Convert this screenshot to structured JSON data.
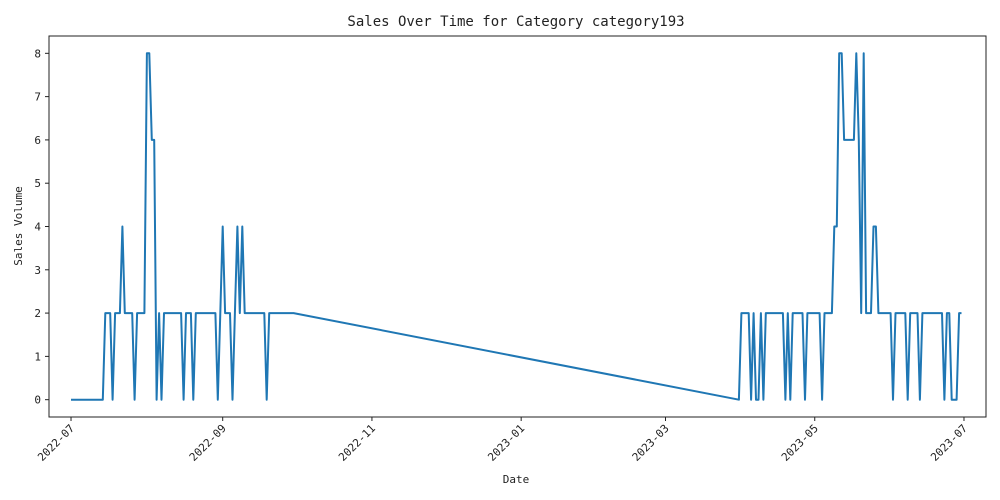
{
  "chart_data": {
    "type": "line",
    "title": "Sales Over Time for Category category193",
    "xlabel": "Date",
    "ylabel": "Sales Volume",
    "x_ticks": [
      "2022-07",
      "2022-09",
      "2022-11",
      "2023-01",
      "2023-03",
      "2023-05",
      "2023-07"
    ],
    "y_ticks": [
      0,
      1,
      2,
      3,
      4,
      5,
      6,
      7,
      8
    ],
    "xlim": [
      "2022-06-22",
      "2023-07-10"
    ],
    "ylim": [
      -0.4,
      8.4
    ],
    "grid": false,
    "colors": {
      "series": "#1f77b4",
      "frame": "#222222"
    },
    "series": [
      {
        "points": [
          [
            "2022-07-01",
            0
          ],
          [
            "2022-07-02",
            0
          ],
          [
            "2022-07-03",
            0
          ],
          [
            "2022-07-04",
            0
          ],
          [
            "2022-07-05",
            0
          ],
          [
            "2022-07-06",
            0
          ],
          [
            "2022-07-07",
            0
          ],
          [
            "2022-07-08",
            0
          ],
          [
            "2022-07-09",
            0
          ],
          [
            "2022-07-10",
            0
          ],
          [
            "2022-07-11",
            0
          ],
          [
            "2022-07-12",
            0
          ],
          [
            "2022-07-13",
            0
          ],
          [
            "2022-07-14",
            0
          ],
          [
            "2022-07-15",
            2
          ],
          [
            "2022-07-16",
            2
          ],
          [
            "2022-07-17",
            2
          ],
          [
            "2022-07-18",
            0
          ],
          [
            "2022-07-19",
            2
          ],
          [
            "2022-07-20",
            2
          ],
          [
            "2022-07-21",
            2
          ],
          [
            "2022-07-22",
            4
          ],
          [
            "2022-07-23",
            2
          ],
          [
            "2022-07-24",
            2
          ],
          [
            "2022-07-25",
            2
          ],
          [
            "2022-07-26",
            2
          ],
          [
            "2022-07-27",
            0
          ],
          [
            "2022-07-28",
            2
          ],
          [
            "2022-07-29",
            2
          ],
          [
            "2022-07-30",
            2
          ],
          [
            "2022-07-31",
            2
          ],
          [
            "2022-08-01",
            8
          ],
          [
            "2022-08-02",
            8
          ],
          [
            "2022-08-03",
            6
          ],
          [
            "2022-08-04",
            6
          ],
          [
            "2022-08-05",
            0
          ],
          [
            "2022-08-06",
            2
          ],
          [
            "2022-08-07",
            0
          ],
          [
            "2022-08-08",
            2
          ],
          [
            "2022-08-09",
            2
          ],
          [
            "2022-08-10",
            2
          ],
          [
            "2022-08-11",
            2
          ],
          [
            "2022-08-12",
            2
          ],
          [
            "2022-08-13",
            2
          ],
          [
            "2022-08-14",
            2
          ],
          [
            "2022-08-15",
            2
          ],
          [
            "2022-08-16",
            0
          ],
          [
            "2022-08-17",
            2
          ],
          [
            "2022-08-18",
            2
          ],
          [
            "2022-08-19",
            2
          ],
          [
            "2022-08-20",
            0
          ],
          [
            "2022-08-21",
            2
          ],
          [
            "2022-08-22",
            2
          ],
          [
            "2022-08-23",
            2
          ],
          [
            "2022-08-24",
            2
          ],
          [
            "2022-08-25",
            2
          ],
          [
            "2022-08-26",
            2
          ],
          [
            "2022-08-27",
            2
          ],
          [
            "2022-08-28",
            2
          ],
          [
            "2022-08-29",
            2
          ],
          [
            "2022-08-30",
            0
          ],
          [
            "2022-08-31",
            2
          ],
          [
            "2022-09-01",
            4
          ],
          [
            "2022-09-02",
            2
          ],
          [
            "2022-09-03",
            2
          ],
          [
            "2022-09-04",
            2
          ],
          [
            "2022-09-05",
            0
          ],
          [
            "2022-09-06",
            2
          ],
          [
            "2022-09-07",
            4
          ],
          [
            "2022-09-08",
            2
          ],
          [
            "2022-09-09",
            4
          ],
          [
            "2022-09-10",
            2
          ],
          [
            "2022-09-11",
            2
          ],
          [
            "2022-09-12",
            2
          ],
          [
            "2022-09-13",
            2
          ],
          [
            "2022-09-14",
            2
          ],
          [
            "2022-09-15",
            2
          ],
          [
            "2022-09-16",
            2
          ],
          [
            "2022-09-17",
            2
          ],
          [
            "2022-09-18",
            2
          ],
          [
            "2022-09-19",
            0
          ],
          [
            "2022-09-20",
            2
          ],
          [
            "2022-09-21",
            2
          ],
          [
            "2022-09-30",
            2
          ],
          [
            "2023-03-31",
            0
          ],
          [
            "2023-04-01",
            2
          ],
          [
            "2023-04-02",
            2
          ],
          [
            "2023-04-03",
            2
          ],
          [
            "2023-04-04",
            2
          ],
          [
            "2023-04-05",
            0
          ],
          [
            "2023-04-06",
            2
          ],
          [
            "2023-04-07",
            0
          ],
          [
            "2023-04-08",
            0
          ],
          [
            "2023-04-09",
            2
          ],
          [
            "2023-04-10",
            0
          ],
          [
            "2023-04-11",
            2
          ],
          [
            "2023-04-12",
            2
          ],
          [
            "2023-04-13",
            2
          ],
          [
            "2023-04-14",
            2
          ],
          [
            "2023-04-15",
            2
          ],
          [
            "2023-04-16",
            2
          ],
          [
            "2023-04-17",
            2
          ],
          [
            "2023-04-18",
            2
          ],
          [
            "2023-04-19",
            0
          ],
          [
            "2023-04-20",
            2
          ],
          [
            "2023-04-21",
            0
          ],
          [
            "2023-04-22",
            2
          ],
          [
            "2023-04-23",
            2
          ],
          [
            "2023-04-24",
            2
          ],
          [
            "2023-04-25",
            2
          ],
          [
            "2023-04-26",
            2
          ],
          [
            "2023-04-27",
            0
          ],
          [
            "2023-04-28",
            2
          ],
          [
            "2023-04-29",
            2
          ],
          [
            "2023-04-30",
            2
          ],
          [
            "2023-05-01",
            2
          ],
          [
            "2023-05-02",
            2
          ],
          [
            "2023-05-03",
            2
          ],
          [
            "2023-05-04",
            0
          ],
          [
            "2023-05-05",
            2
          ],
          [
            "2023-05-06",
            2
          ],
          [
            "2023-05-07",
            2
          ],
          [
            "2023-05-08",
            2
          ],
          [
            "2023-05-09",
            4
          ],
          [
            "2023-05-10",
            4
          ],
          [
            "2023-05-11",
            8
          ],
          [
            "2023-05-12",
            8
          ],
          [
            "2023-05-13",
            6
          ],
          [
            "2023-05-14",
            6
          ],
          [
            "2023-05-15",
            6
          ],
          [
            "2023-05-16",
            6
          ],
          [
            "2023-05-17",
            6
          ],
          [
            "2023-05-18",
            8
          ],
          [
            "2023-05-19",
            6
          ],
          [
            "2023-05-20",
            2
          ],
          [
            "2023-05-21",
            8
          ],
          [
            "2023-05-22",
            2
          ],
          [
            "2023-05-23",
            2
          ],
          [
            "2023-05-24",
            2
          ],
          [
            "2023-05-25",
            4
          ],
          [
            "2023-05-26",
            4
          ],
          [
            "2023-05-27",
            2
          ],
          [
            "2023-05-28",
            2
          ],
          [
            "2023-05-29",
            2
          ],
          [
            "2023-05-30",
            2
          ],
          [
            "2023-05-31",
            2
          ],
          [
            "2023-06-01",
            2
          ],
          [
            "2023-06-02",
            0
          ],
          [
            "2023-06-03",
            2
          ],
          [
            "2023-06-04",
            2
          ],
          [
            "2023-06-05",
            2
          ],
          [
            "2023-06-06",
            2
          ],
          [
            "2023-06-07",
            2
          ],
          [
            "2023-06-08",
            0
          ],
          [
            "2023-06-09",
            2
          ],
          [
            "2023-06-10",
            2
          ],
          [
            "2023-06-11",
            2
          ],
          [
            "2023-06-12",
            2
          ],
          [
            "2023-06-13",
            0
          ],
          [
            "2023-06-14",
            2
          ],
          [
            "2023-06-15",
            2
          ],
          [
            "2023-06-16",
            2
          ],
          [
            "2023-06-17",
            2
          ],
          [
            "2023-06-18",
            2
          ],
          [
            "2023-06-19",
            2
          ],
          [
            "2023-06-20",
            2
          ],
          [
            "2023-06-21",
            2
          ],
          [
            "2023-06-22",
            2
          ],
          [
            "2023-06-23",
            0
          ],
          [
            "2023-06-24",
            2
          ],
          [
            "2023-06-25",
            2
          ],
          [
            "2023-06-26",
            0
          ],
          [
            "2023-06-27",
            0
          ],
          [
            "2023-06-28",
            0
          ],
          [
            "2023-06-29",
            2
          ],
          [
            "2023-06-30",
            2
          ]
        ]
      }
    ]
  }
}
